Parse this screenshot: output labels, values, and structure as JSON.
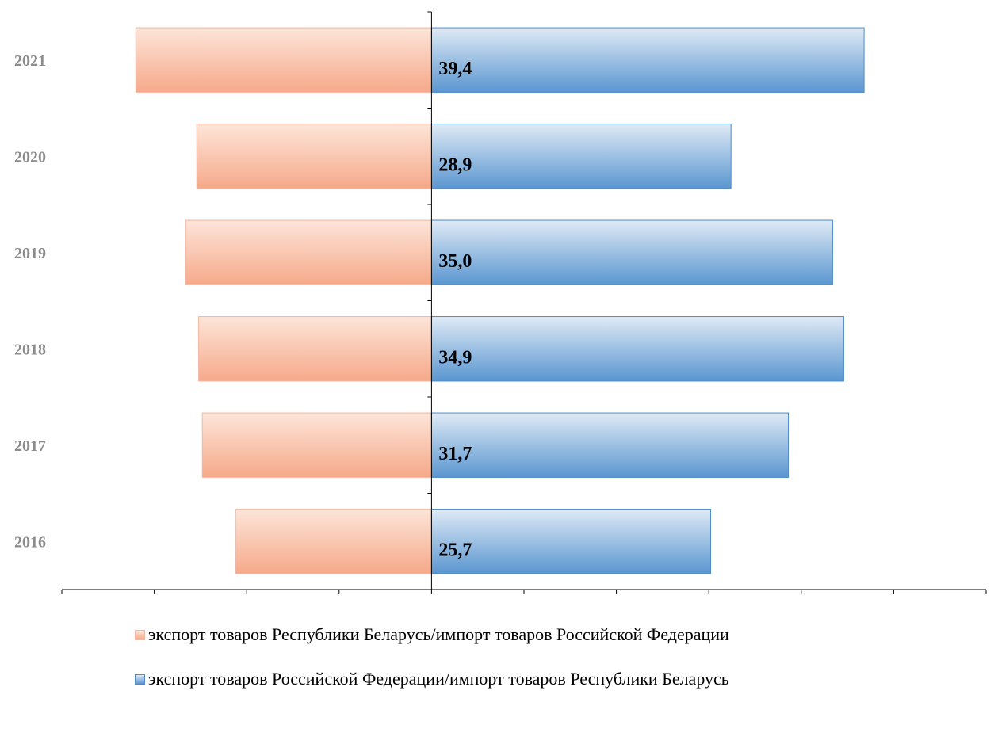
{
  "chart_data": {
    "type": "bar",
    "orientation": "horizontal",
    "categories": [
      "2016",
      "2017",
      "2018",
      "2019",
      "2020",
      "2021"
    ],
    "series": [
      {
        "name": "экспорт товаров Республики Беларусь/импорт товаров Российской Федерации",
        "values": [
          10.6,
          12.4,
          12.6,
          13.3,
          12.7,
          16.0
        ],
        "direction": "left",
        "color_top": "#fde5d9",
        "color_bottom": "#f6a98a",
        "border": "#f4b8a2"
      },
      {
        "name": "экспорт товаров Российской Федерации/импорт товаров Республики Беларусь",
        "values": [
          15.1,
          19.3,
          22.3,
          21.7,
          16.2,
          23.4
        ],
        "direction": "right",
        "color_top": "#dfeaf6",
        "color_bottom": "#5a96d0",
        "border": "#4f8bc8"
      }
    ],
    "data_labels": [
      "25,7",
      "31,7",
      "34,9",
      "35,0",
      "28,9",
      "39,4"
    ],
    "x_ticks": [
      "20",
      "15",
      "10",
      "5",
      "0",
      "5",
      "10",
      "15",
      "20",
      "25",
      "30"
    ],
    "xlim": [
      -20,
      30
    ],
    "title": "",
    "xlabel": "",
    "ylabel": "",
    "grid": false,
    "legend_position": "bottom",
    "tick_color": "#8c8c8c"
  }
}
